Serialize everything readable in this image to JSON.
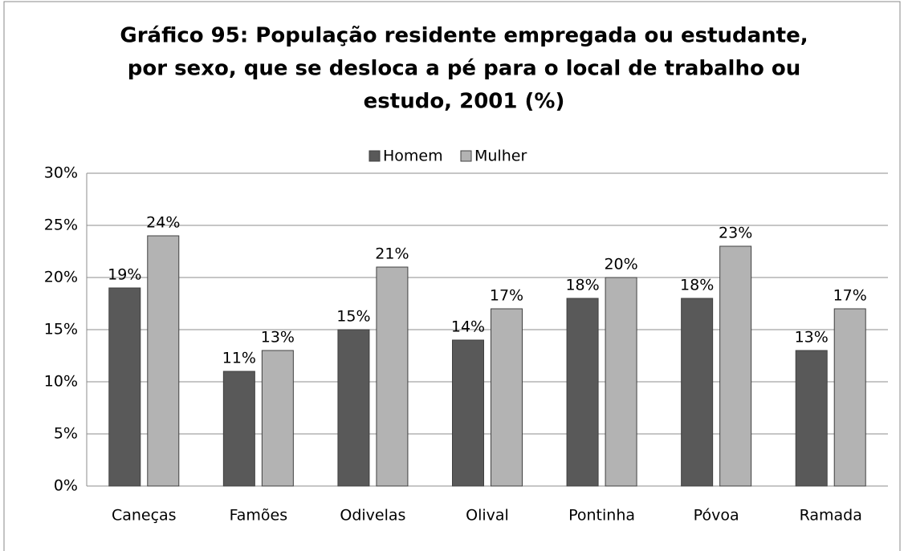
{
  "chart_data": {
    "type": "bar",
    "title": [
      "Gráfico 95: População residente  empregada ou estudante,",
      "por sexo, que se desloca a pé para o local de trabalho ou",
      "estudo, 2001 (%)"
    ],
    "categories": [
      "Caneças",
      "Famões",
      "Odivelas",
      "Olival",
      "Pontinha",
      "Póvoa",
      "Ramada"
    ],
    "series": [
      {
        "name": "Homem",
        "color": "#595959",
        "values": [
          19,
          11,
          15,
          14,
          18,
          18,
          13
        ],
        "value_labels": [
          "19%",
          "11%",
          "15%",
          "14%",
          "18%",
          "18%",
          "13%"
        ]
      },
      {
        "name": "Mulher",
        "color": "#b3b3b3",
        "values": [
          24,
          13,
          21,
          17,
          20,
          23,
          17
        ],
        "value_labels": [
          "24%",
          "13%",
          "21%",
          "17%",
          "20%",
          "23%",
          "17%"
        ]
      }
    ],
    "ylim": [
      0,
      30
    ],
    "yticks": [
      {
        "value": 0,
        "label": "0%"
      },
      {
        "value": 5,
        "label": "5%"
      },
      {
        "value": 10,
        "label": "10%"
      },
      {
        "value": 15,
        "label": "15%"
      },
      {
        "value": 20,
        "label": "20%"
      },
      {
        "value": 25,
        "label": "25%"
      },
      {
        "value": 30,
        "label": "30%"
      }
    ],
    "grid": true,
    "legend": "top"
  }
}
